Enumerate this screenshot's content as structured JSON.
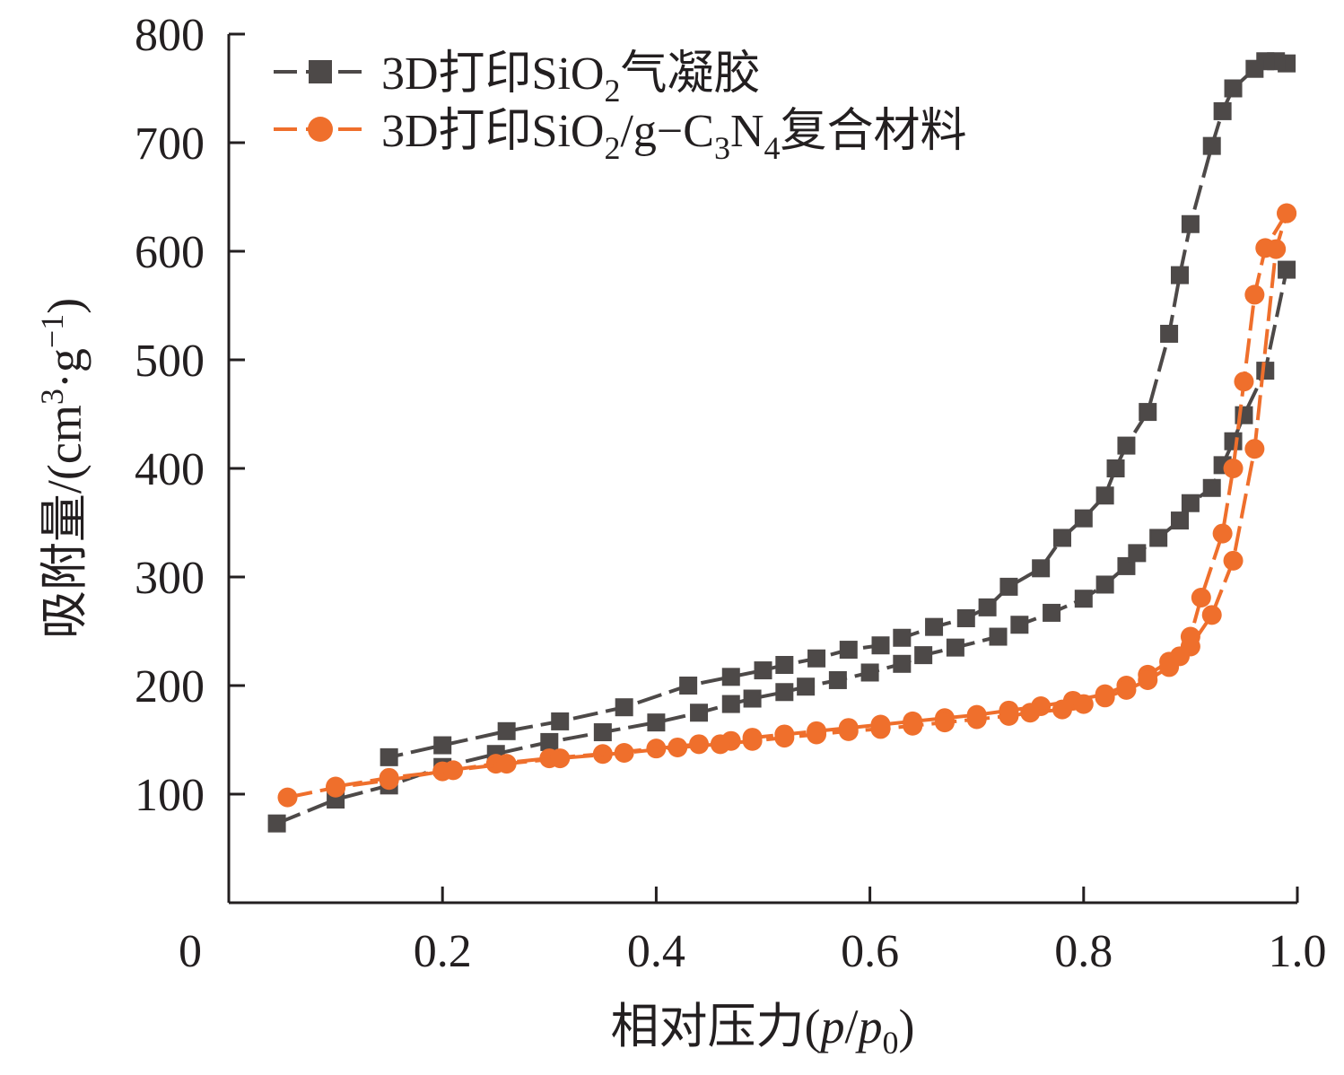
{
  "chart_data": {
    "type": "line",
    "title": "",
    "xlabel": {
      "prefix": "相对压力(",
      "p": "p",
      "slash": "/",
      "p0_base": "p",
      "p0_sub": "0",
      "suffix": ")"
    },
    "ylabel": {
      "prefix": "吸附量/(cm",
      "sup1": "3",
      "mid": "·g",
      "sup2": "−1",
      "suffix": ")"
    },
    "xlim": [
      0,
      1.0
    ],
    "ylim": [
      0,
      800
    ],
    "x_ticks": [
      0,
      0.2,
      0.4,
      0.6,
      0.8,
      1.0
    ],
    "x_tick_labels": [
      "0",
      "0.2",
      "0.4",
      "0.6",
      "0.8",
      "1.0"
    ],
    "y_ticks": [
      100,
      200,
      300,
      400,
      500,
      600,
      700,
      800
    ],
    "y_tick_labels": [
      "100",
      "200",
      "300",
      "400",
      "500",
      "600",
      "700",
      "800"
    ],
    "grid": false,
    "legend_position": "top-left",
    "series": [
      {
        "name": "3D打印SiO2气凝胶",
        "legend": {
          "a": "3D打印SiO",
          "sub": "2",
          "b": "气凝胶"
        },
        "color": "#4d4948",
        "marker": "square",
        "adsorption": {
          "x": [
            0.045,
            0.1,
            0.15,
            0.2,
            0.25,
            0.3,
            0.35,
            0.4,
            0.44,
            0.47,
            0.49,
            0.52,
            0.54,
            0.57,
            0.6,
            0.63,
            0.65,
            0.68,
            0.72,
            0.74,
            0.77,
            0.8,
            0.82,
            0.84,
            0.85,
            0.87,
            0.89,
            0.9,
            0.92,
            0.93,
            0.94,
            0.95,
            0.97,
            0.99
          ],
          "y": [
            73,
            95,
            108,
            125,
            137,
            148,
            157,
            166,
            175,
            183,
            188,
            194,
            199,
            205,
            212,
            220,
            228,
            235,
            245,
            256,
            267,
            280,
            293,
            310,
            322,
            336,
            352,
            368,
            382,
            403,
            425,
            449,
            490,
            583
          ]
        },
        "desorption": {
          "x": [
            0.99,
            0.98,
            0.97,
            0.96,
            0.94,
            0.93,
            0.92,
            0.9,
            0.89,
            0.88,
            0.86,
            0.84,
            0.83,
            0.82,
            0.8,
            0.78,
            0.76,
            0.73,
            0.71,
            0.69,
            0.66,
            0.63,
            0.61,
            0.58,
            0.55,
            0.52,
            0.5,
            0.47,
            0.43,
            0.37,
            0.31,
            0.26,
            0.2,
            0.15
          ],
          "y": [
            773,
            775,
            775,
            768,
            750,
            729,
            697,
            625,
            578,
            524,
            452,
            421,
            400,
            375,
            354,
            336,
            308,
            291,
            272,
            262,
            254,
            244,
            237,
            233,
            225,
            219,
            214,
            208,
            200,
            180,
            167,
            158,
            145,
            134
          ]
        }
      },
      {
        "name": "3D打印SiO2/g-C3N4复合材料",
        "legend": {
          "a": "3D打印SiO",
          "sub1": "2",
          "b": "/g−C",
          "sub2": "3",
          "c": "N",
          "sub3": "4",
          "d": "复合材料"
        },
        "color": "#ef6f2c",
        "marker": "circle",
        "adsorption": {
          "x": [
            0.055,
            0.1,
            0.15,
            0.2,
            0.25,
            0.3,
            0.35,
            0.4,
            0.44,
            0.47,
            0.49,
            0.52,
            0.55,
            0.58,
            0.61,
            0.64,
            0.67,
            0.7,
            0.73,
            0.76,
            0.79,
            0.82,
            0.84,
            0.86,
            0.88,
            0.9,
            0.92,
            0.94,
            0.96,
            0.98,
            0.99
          ],
          "y": [
            97,
            106,
            113,
            121,
            128,
            133,
            137,
            142,
            146,
            149,
            152,
            155,
            158,
            161,
            164,
            167,
            170,
            173,
            177,
            181,
            186,
            192,
            200,
            210,
            222,
            236,
            265,
            315,
            418,
            602,
            635
          ]
        },
        "desorption": {
          "x": [
            0.99,
            0.97,
            0.96,
            0.95,
            0.94,
            0.93,
            0.91,
            0.9,
            0.89,
            0.88,
            0.86,
            0.84,
            0.82,
            0.8,
            0.78,
            0.75,
            0.73,
            0.7,
            0.67,
            0.64,
            0.61,
            0.58,
            0.55,
            0.52,
            0.49,
            0.46,
            0.42,
            0.37,
            0.31,
            0.26,
            0.21,
            0.15,
            0.1
          ],
          "y": [
            635,
            603,
            560,
            480,
            400,
            340,
            281,
            245,
            227,
            217,
            205,
            196,
            189,
            183,
            178,
            175,
            172,
            169,
            166,
            163,
            160,
            158,
            155,
            152,
            149,
            146,
            143,
            138,
            133,
            128,
            122,
            115,
            107
          ]
        }
      }
    ]
  }
}
